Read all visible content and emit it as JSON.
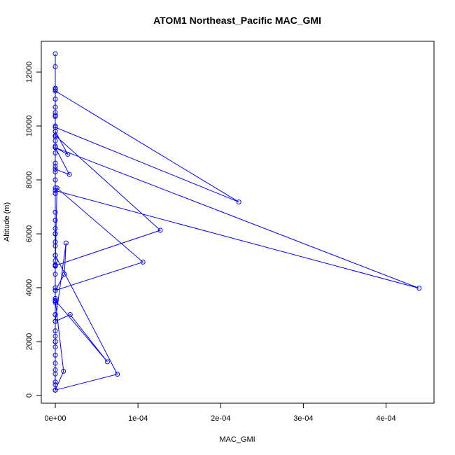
{
  "chart_data": {
    "type": "line",
    "title": "ATOM1 Northeast_Pacific MAC_GMI",
    "xlabel": "MAC_GMI",
    "ylabel": "Altitude (m)",
    "xlim": [
      -1e-05,
      0.00046
    ],
    "ylim": [
      0,
      13000
    ],
    "x_ticks": [
      0,
      0.0001,
      0.0002,
      0.0003,
      0.0004
    ],
    "x_tick_labels": [
      "0e+00",
      "1e-04",
      "2e-04",
      "3e-04",
      "4e-04"
    ],
    "y_ticks": [
      0,
      2000,
      4000,
      6000,
      8000,
      10000,
      12000
    ],
    "y_tick_labels": [
      "0",
      "2000",
      "4000",
      "6000",
      "8000",
      "10000",
      "12000"
    ],
    "color": "#0000ff",
    "marker": "open-circle",
    "grid": false,
    "legend": "none",
    "series": [
      {
        "x": [
          0.0,
          0.0,
          0.0,
          0.0,
          0.0,
          0.0,
          0.0,
          0.0,
          0.0,
          0.0,
          0.0,
          0.0,
          0.0,
          0.0,
          0.0,
          0.0,
          0.0,
          0.0,
          0.0,
          0.0,
          0.0,
          0.0,
          0.0,
          0.0,
          0.0,
          0.0,
          0.0,
          0.0,
          0.0,
          0.0,
          0.0,
          0.0,
          0.0,
          0.0,
          0.0,
          0.0,
          0.0,
          0.0,
          0.0,
          0.0,
          0.0,
          0.0,
          0.0,
          0.0,
          0.0,
          0.0,
          0.0,
          0.0,
          0.0,
          0.0,
          0.0,
          0.0,
          0.0,
          0.0,
          0.0,
          0.0,
          0.0,
          1.5e-05,
          0.0,
          1.7e-05,
          0.0,
          0.0,
          0.000222,
          0.0,
          0.0,
          0.00044,
          0.0,
          0.0,
          0.000127,
          0.0,
          2e-06,
          0.000106,
          0.0,
          1.1e-05,
          1.3e-05,
          0.0,
          1.8e-05,
          6.3e-05,
          0.0,
          1e-05,
          0.0,
          7.5e-05,
          0.0
        ],
        "y": [
          200,
          1800,
          3500,
          5700,
          7700,
          9800,
          11400,
          12680,
          12200,
          11000,
          9600,
          8500,
          6800,
          5200,
          3900,
          2200,
          200,
          950,
          2750,
          4850,
          6200,
          8300,
          10000,
          10400,
          10700,
          9450,
          7500,
          5550,
          3450,
          2000,
          500,
          1500,
          3000,
          4500,
          6000,
          7500,
          9000,
          10500,
          11350,
          10350,
          9250,
          8000,
          6500,
          5000,
          4000,
          3000,
          2000,
          800,
          400,
          200,
          1200,
          2400,
          3600,
          4800,
          6000,
          8620,
          9800,
          8950,
          9200,
          8200,
          8400,
          11300,
          7180,
          9950,
          9200,
          3980,
          7600,
          9650,
          6130,
          4820,
          7700,
          4950,
          3900,
          4500,
          5660,
          2750,
          3000,
          1250,
          3530,
          900,
          200,
          790,
          5200
        ]
      }
    ]
  }
}
